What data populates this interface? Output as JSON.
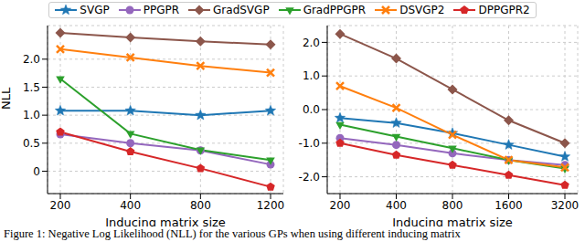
{
  "chart_data": [
    {
      "type": "line",
      "x_label": "Inducing matrix size",
      "y_label": "NLL",
      "legend": "top",
      "grid": true,
      "categories": [
        200,
        400,
        800,
        1200
      ],
      "ylim": [
        -0.4,
        2.6
      ],
      "yticks": [
        0,
        0.5,
        {
          "value": 1,
          "label": "1.0"
        },
        1.5,
        {
          "value": 2,
          "label": "2.0"
        }
      ],
      "series": [
        {
          "name": "SVGP",
          "color": "#1f77b4",
          "marker": "star",
          "values": [
            1.08,
            1.08,
            1.0,
            1.08
          ]
        },
        {
          "name": "PPGPR",
          "color": "#9467bd",
          "marker": "circle",
          "values": [
            0.66,
            0.5,
            0.37,
            0.12
          ]
        },
        {
          "name": "GradSVGP",
          "color": "#8c564b",
          "marker": "diamond",
          "values": [
            2.47,
            2.39,
            2.32,
            2.26
          ]
        },
        {
          "name": "GradPPGPR",
          "color": "#2ca02c",
          "marker": "triangle_down",
          "values": [
            1.65,
            0.67,
            0.38,
            0.2
          ]
        },
        {
          "name": "DSVGP2",
          "color": "#ff7f0e",
          "marker": "x",
          "values": [
            2.18,
            2.03,
            1.88,
            1.76
          ]
        },
        {
          "name": "DPPGPR2",
          "color": "#d62728",
          "marker": "pentagon",
          "values": [
            0.7,
            0.35,
            0.05,
            -0.28
          ]
        }
      ]
    },
    {
      "type": "line",
      "x_label": "Inducing matrix size",
      "grid": true,
      "categories": [
        200,
        400,
        800,
        1600,
        3200
      ],
      "ylim": [
        -2.5,
        2.5
      ],
      "yticks": [
        {
          "value": -2,
          "label": "-2.0"
        },
        {
          "value": -1,
          "label": "-1.0"
        },
        {
          "value": 0,
          "label": "0.0"
        },
        {
          "value": 1,
          "label": "1.0"
        },
        {
          "value": 2,
          "label": "2.0"
        }
      ],
      "series": [
        {
          "name": "SVGP",
          "color": "#1f77b4",
          "marker": "star",
          "values": [
            -0.25,
            -0.4,
            -0.7,
            -1.05,
            -1.4
          ]
        },
        {
          "name": "PPGPR",
          "color": "#9467bd",
          "marker": "circle",
          "values": [
            -0.85,
            -1.05,
            -1.3,
            -1.5,
            -1.65
          ]
        },
        {
          "name": "GradSVGP",
          "color": "#8c564b",
          "marker": "diamond",
          "values": [
            2.25,
            1.52,
            0.6,
            -0.32,
            -1.0
          ]
        },
        {
          "name": "GradPPGPR",
          "color": "#2ca02c",
          "marker": "triangle_down",
          "values": [
            -0.45,
            -0.8,
            -1.15,
            -1.5,
            -1.75
          ]
        },
        {
          "name": "DSVGP2",
          "color": "#ff7f0e",
          "marker": "x",
          "values": [
            0.7,
            0.05,
            -0.75,
            -1.5,
            -1.72
          ]
        },
        {
          "name": "DPPGPR2",
          "color": "#d62728",
          "marker": "pentagon",
          "values": [
            -1.0,
            -1.35,
            -1.65,
            -1.95,
            -2.25
          ]
        }
      ]
    }
  ],
  "caption": "Figure 1: Negative Log Likelihood (NLL) for the various GPs when using different inducing matrix"
}
